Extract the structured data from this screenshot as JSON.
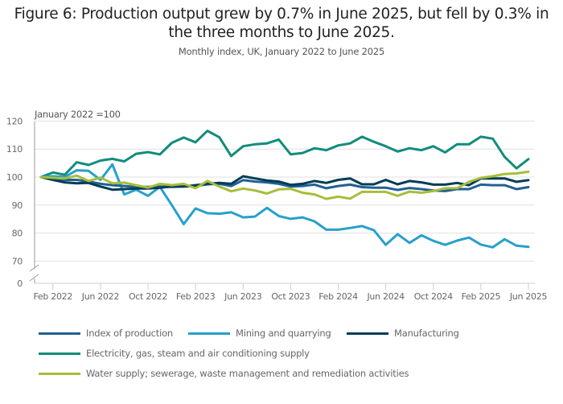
{
  "header": {
    "title_line1": "Figure 6: Production output grew by 0.7% in June 2025, but fell by 0.3% in",
    "title_line2": "the three months to June 2025.",
    "subtitle": "Monthly index, UK, January 2022 to June 2025"
  },
  "chart_data": {
    "type": "line",
    "title": "Figure 6: Production output grew by 0.7% in June 2025, but fell by 0.3% in the three months to June 2025.",
    "subtitle": "Monthly index, UK, January 2022 to June 2025",
    "xlabel": "",
    "ylabel": "January 2022 =100",
    "ylim": [
      0,
      120
    ],
    "axis_break": [
      0,
      70
    ],
    "y_ticks": [
      0,
      70,
      80,
      90,
      100,
      110,
      120
    ],
    "y_tick_labels": [
      "0",
      "70",
      "80",
      "90",
      "100",
      "110",
      "120"
    ],
    "x_tick_labels": [
      "Feb 2022",
      "Jun 2022",
      "Oct 2022",
      "Feb 2023",
      "Jun 2023",
      "Oct 2023",
      "Feb 2024",
      "Jun 2024",
      "Oct 2024",
      "Feb 2025",
      "Jun 2025"
    ],
    "x_tick_indices": [
      1,
      5,
      9,
      13,
      17,
      21,
      25,
      29,
      33,
      37,
      41
    ],
    "grid": true,
    "legend_position": "bottom",
    "x": [
      "Jan 2022",
      "Feb 2022",
      "Mar 2022",
      "Apr 2022",
      "May 2022",
      "Jun 2022",
      "Jul 2022",
      "Aug 2022",
      "Sep 2022",
      "Oct 2022",
      "Nov 2022",
      "Dec 2022",
      "Jan 2023",
      "Feb 2023",
      "Mar 2023",
      "Apr 2023",
      "May 2023",
      "Jun 2023",
      "Jul 2023",
      "Aug 2023",
      "Sep 2023",
      "Oct 2023",
      "Nov 2023",
      "Dec 2023",
      "Jan 2024",
      "Feb 2024",
      "Mar 2024",
      "Apr 2024",
      "May 2024",
      "Jun 2024",
      "Jul 2024",
      "Aug 2024",
      "Sep 2024",
      "Oct 2024",
      "Nov 2024",
      "Dec 2024",
      "Jan 2025",
      "Feb 2025",
      "Mar 2025",
      "Apr 2025",
      "May 2025",
      "Jun 2025"
    ],
    "series": [
      {
        "name": "Index of production",
        "color": "#206095",
        "values": [
          100,
          99.5,
          99.0,
          99.0,
          98.4,
          97.6,
          97.1,
          96.8,
          96.5,
          96.5,
          96.6,
          96.5,
          96.6,
          96.8,
          97.4,
          97.6,
          96.8,
          98.9,
          98.4,
          98.1,
          97.6,
          96.6,
          96.8,
          97.3,
          96.0,
          96.8,
          97.3,
          96.4,
          96.2,
          96.2,
          95.4,
          96.1,
          95.7,
          95.2,
          95.0,
          95.7,
          95.7,
          97.3,
          97.1,
          97.1,
          95.7,
          96.4
        ]
      },
      {
        "name": "Mining and quarrying",
        "color": "#27a0cc",
        "values": [
          100,
          100.3,
          100,
          102.4,
          102.2,
          99.0,
          104.5,
          93.8,
          95.5,
          93.3,
          96.5,
          90.0,
          83.2,
          88.8,
          87.1,
          86.9,
          87.4,
          85.6,
          85.9,
          89.0,
          86.1,
          85.1,
          85.6,
          84.2,
          81.2,
          81.2,
          81.8,
          82.5,
          81.0,
          75.8,
          79.6,
          76.5,
          79.2,
          77.2,
          75.8,
          77.3,
          78.4,
          75.9,
          74.9,
          77.8,
          75.5,
          75.1
        ]
      },
      {
        "name": "Manufacturing",
        "color": "#003c57",
        "values": [
          100,
          99.0,
          98.1,
          97.8,
          97.9,
          96.6,
          95.5,
          95.7,
          95.9,
          95.9,
          96.2,
          96.6,
          96.6,
          97.1,
          97.6,
          97.9,
          97.6,
          100.3,
          99.5,
          98.8,
          98.4,
          97.2,
          97.6,
          98.6,
          97.9,
          99.0,
          99.5,
          97.4,
          97.4,
          99.0,
          97.4,
          98.6,
          98.1,
          97.3,
          97.3,
          97.9,
          97.1,
          99.5,
          99.5,
          99.5,
          98.3,
          98.9
        ]
      },
      {
        "name": "Electricity, gas, steam and air conditioning supply",
        "color": "#118c7b",
        "values": [
          100,
          101.6,
          100.8,
          105.3,
          104.3,
          105.9,
          106.5,
          105.6,
          108.3,
          108.9,
          108.1,
          112.2,
          114.1,
          112.4,
          116.5,
          114.2,
          107.5,
          111.0,
          111.7,
          112.0,
          113.4,
          108.1,
          108.6,
          110.3,
          109.6,
          111.3,
          112.0,
          114.4,
          112.6,
          111.0,
          109.1,
          110.3,
          109.6,
          111.0,
          108.8,
          111.7,
          111.7,
          114.4,
          113.7,
          107.2,
          103.1,
          106.4
        ]
      },
      {
        "name": "Water supply; sewerage, waste management and remediation activities",
        "color": "#a8bd3a",
        "values": [
          100,
          99.7,
          99.5,
          100.5,
          98.6,
          99.8,
          97.8,
          98.0,
          97.1,
          96.2,
          97.6,
          97.1,
          97.6,
          96.0,
          98.6,
          96.6,
          94.9,
          95.9,
          95.2,
          94.1,
          95.6,
          95.8,
          94.4,
          93.8,
          92.2,
          93.0,
          92.3,
          94.7,
          94.7,
          94.7,
          93.3,
          94.8,
          94.4,
          95.0,
          96.0,
          96.0,
          98.3,
          99.7,
          100.3,
          101.1,
          101.3,
          101.9
        ]
      }
    ]
  },
  "legend": {
    "items": [
      {
        "label": "Index of production",
        "color": "#206095"
      },
      {
        "label": "Mining and quarrying",
        "color": "#27a0cc"
      },
      {
        "label": "Manufacturing",
        "color": "#003c57"
      },
      {
        "label": "Electricity, gas, steam and air conditioning supply",
        "color": "#118c7b"
      },
      {
        "label": "Water supply; sewerage, waste management and remediation activities",
        "color": "#a8bd3a"
      }
    ]
  }
}
